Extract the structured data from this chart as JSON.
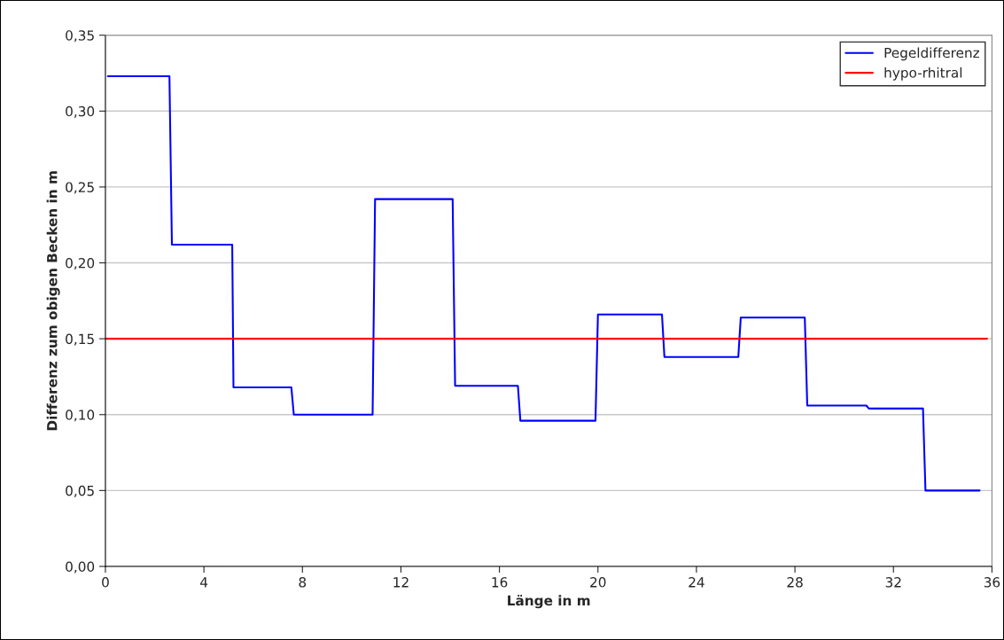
{
  "chart_data": {
    "type": "line",
    "xlabel": "Länge in m",
    "ylabel": "Differenz zum obigen Becken in m",
    "xlim": [
      0,
      36
    ],
    "xticks": [
      0,
      4,
      8,
      12,
      16,
      20,
      24,
      28,
      32,
      36
    ],
    "ylim": [
      0,
      0.35
    ],
    "yticks": [
      {
        "value": 0,
        "label": "0,00"
      },
      {
        "value": 0.05,
        "label": "0,05"
      },
      {
        "value": 0.1,
        "label": "0,10"
      },
      {
        "value": 0.15,
        "label": "0,15"
      },
      {
        "value": 0.2,
        "label": "0,20"
      },
      {
        "value": 0.25,
        "label": "0,25"
      },
      {
        "value": 0.3,
        "label": "0,30"
      },
      {
        "value": 0.35,
        "label": "0,35"
      }
    ],
    "grid": "y",
    "legend": "top right",
    "marker": "none",
    "line_style": "solid",
    "series": [
      {
        "name": "Pegeldifferenz",
        "color": "#0000ff",
        "x": [
          0.1,
          2.6,
          2.7,
          5.15,
          5.2,
          7.55,
          7.65,
          10.85,
          10.95,
          14.1,
          14.2,
          16.75,
          16.85,
          19.9,
          20.0,
          22.6,
          22.7,
          25.7,
          25.8,
          28.4,
          28.5,
          30.9,
          31.0,
          33.2,
          33.3,
          35.5
        ],
        "values": [
          0.323,
          0.323,
          0.212,
          0.212,
          0.118,
          0.118,
          0.1,
          0.1,
          0.242,
          0.242,
          0.119,
          0.119,
          0.096,
          0.096,
          0.166,
          0.166,
          0.138,
          0.138,
          0.164,
          0.164,
          0.106,
          0.106,
          0.104,
          0.104,
          0.05,
          0.05
        ]
      },
      {
        "name": "hypo-rhitral",
        "color": "#ff0000",
        "x": [
          0,
          35.8
        ],
        "values": [
          0.15,
          0.15
        ]
      }
    ]
  }
}
